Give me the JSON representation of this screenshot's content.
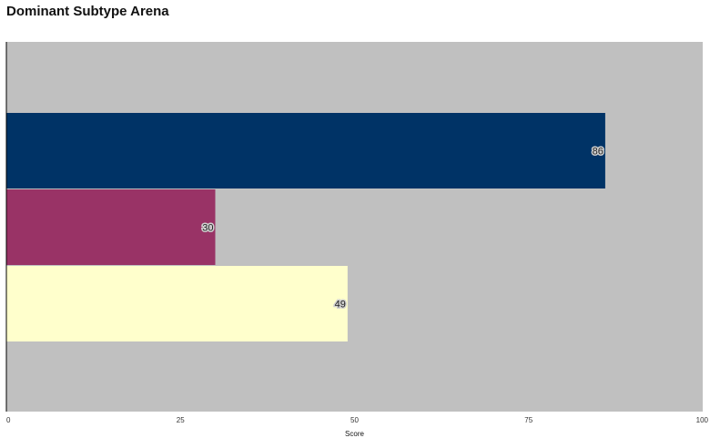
{
  "chart_data": {
    "type": "bar",
    "orientation": "horizontal",
    "title": "Dominant Subtype Arena",
    "xlabel": "Score",
    "ylabel": "",
    "xlim": [
      0,
      100
    ],
    "xticks": [
      0,
      25,
      50,
      75,
      100
    ],
    "categories": [
      "",
      "",
      ""
    ],
    "values": [
      86,
      30,
      49
    ],
    "colors": [
      "#003366",
      "#993366",
      "#ffffcc"
    ],
    "data_labels": [
      "86",
      "30",
      "49"
    ],
    "plot_background": "#c0c0c0",
    "grid": false,
    "legend": "none"
  }
}
